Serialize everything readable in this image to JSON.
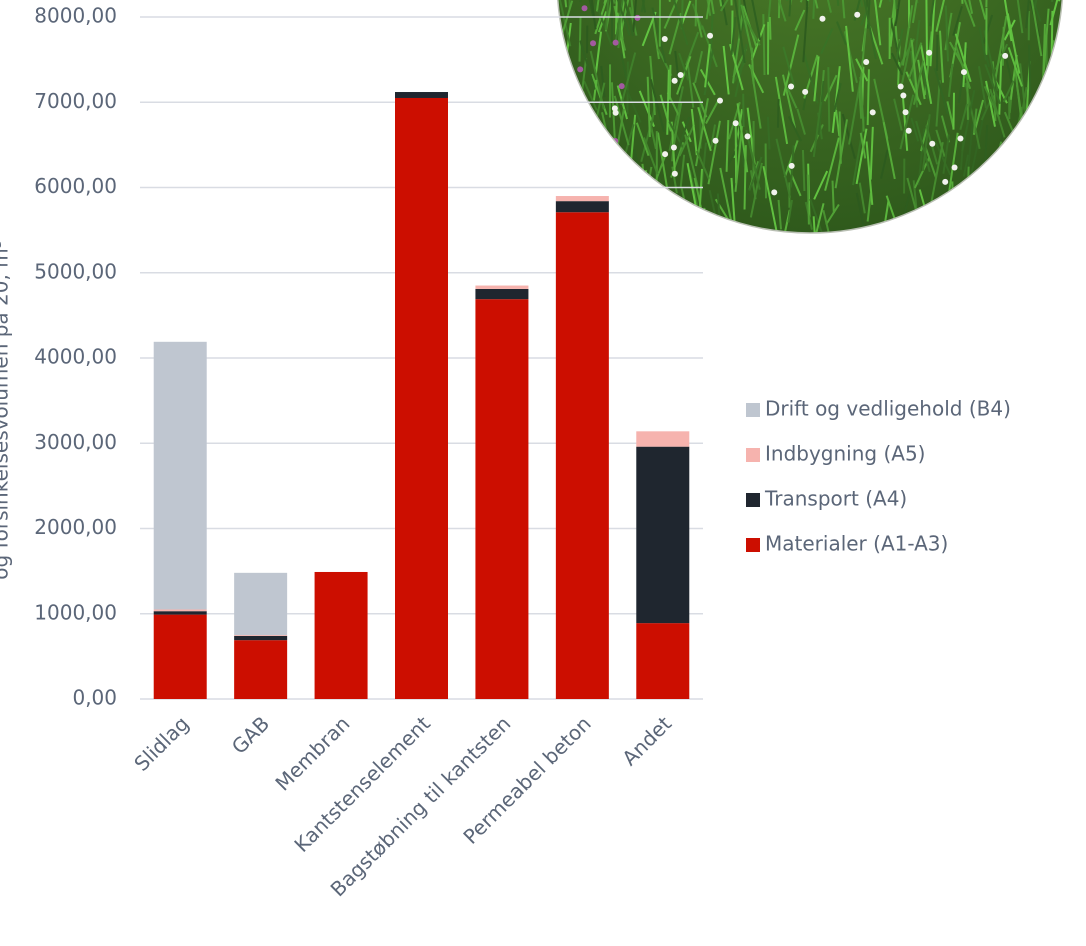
{
  "chart_data": {
    "type": "stacked_bar",
    "y_label": "og forsinkelsesvolumen på 20, m³",
    "categories": [
      "Slidlag",
      "GAB",
      "Membran",
      "Kantstenselement",
      "Bagstøbning til kantsten",
      "Permeabel beton",
      "Andet"
    ],
    "series": [
      {
        "name": "Materialer (A1-A3)",
        "color": "#cc0e00",
        "values": [
          990,
          690,
          1490,
          7050,
          4690,
          5710,
          890
        ]
      },
      {
        "name": "Transport (A4)",
        "color": "#1f262f",
        "values": [
          40,
          50,
          0,
          70,
          120,
          130,
          2070
        ]
      },
      {
        "name": "Indbygning (A5)",
        "color": "#f6b3ae",
        "values": [
          20,
          10,
          0,
          0,
          40,
          60,
          180
        ]
      },
      {
        "name": "Drift og vedligehold (B4)",
        "color": "#bfc6d0",
        "values": [
          3140,
          730,
          0,
          0,
          0,
          0,
          0
        ]
      }
    ],
    "ylim": [
      0,
      8000
    ],
    "yticks": [
      {
        "value": 0,
        "label": "0,00"
      },
      {
        "value": 1000,
        "label": "1000,00"
      },
      {
        "value": 2000,
        "label": "2000,00"
      },
      {
        "value": 3000,
        "label": "3000,00"
      },
      {
        "value": 4000,
        "label": "4000,00"
      },
      {
        "value": 5000,
        "label": "5000,00"
      },
      {
        "value": 6000,
        "label": "6000,00"
      },
      {
        "value": 7000,
        "label": "7000,00"
      },
      {
        "value": 8000,
        "label": "8000,00"
      }
    ],
    "grid": true,
    "legend": "right"
  }
}
